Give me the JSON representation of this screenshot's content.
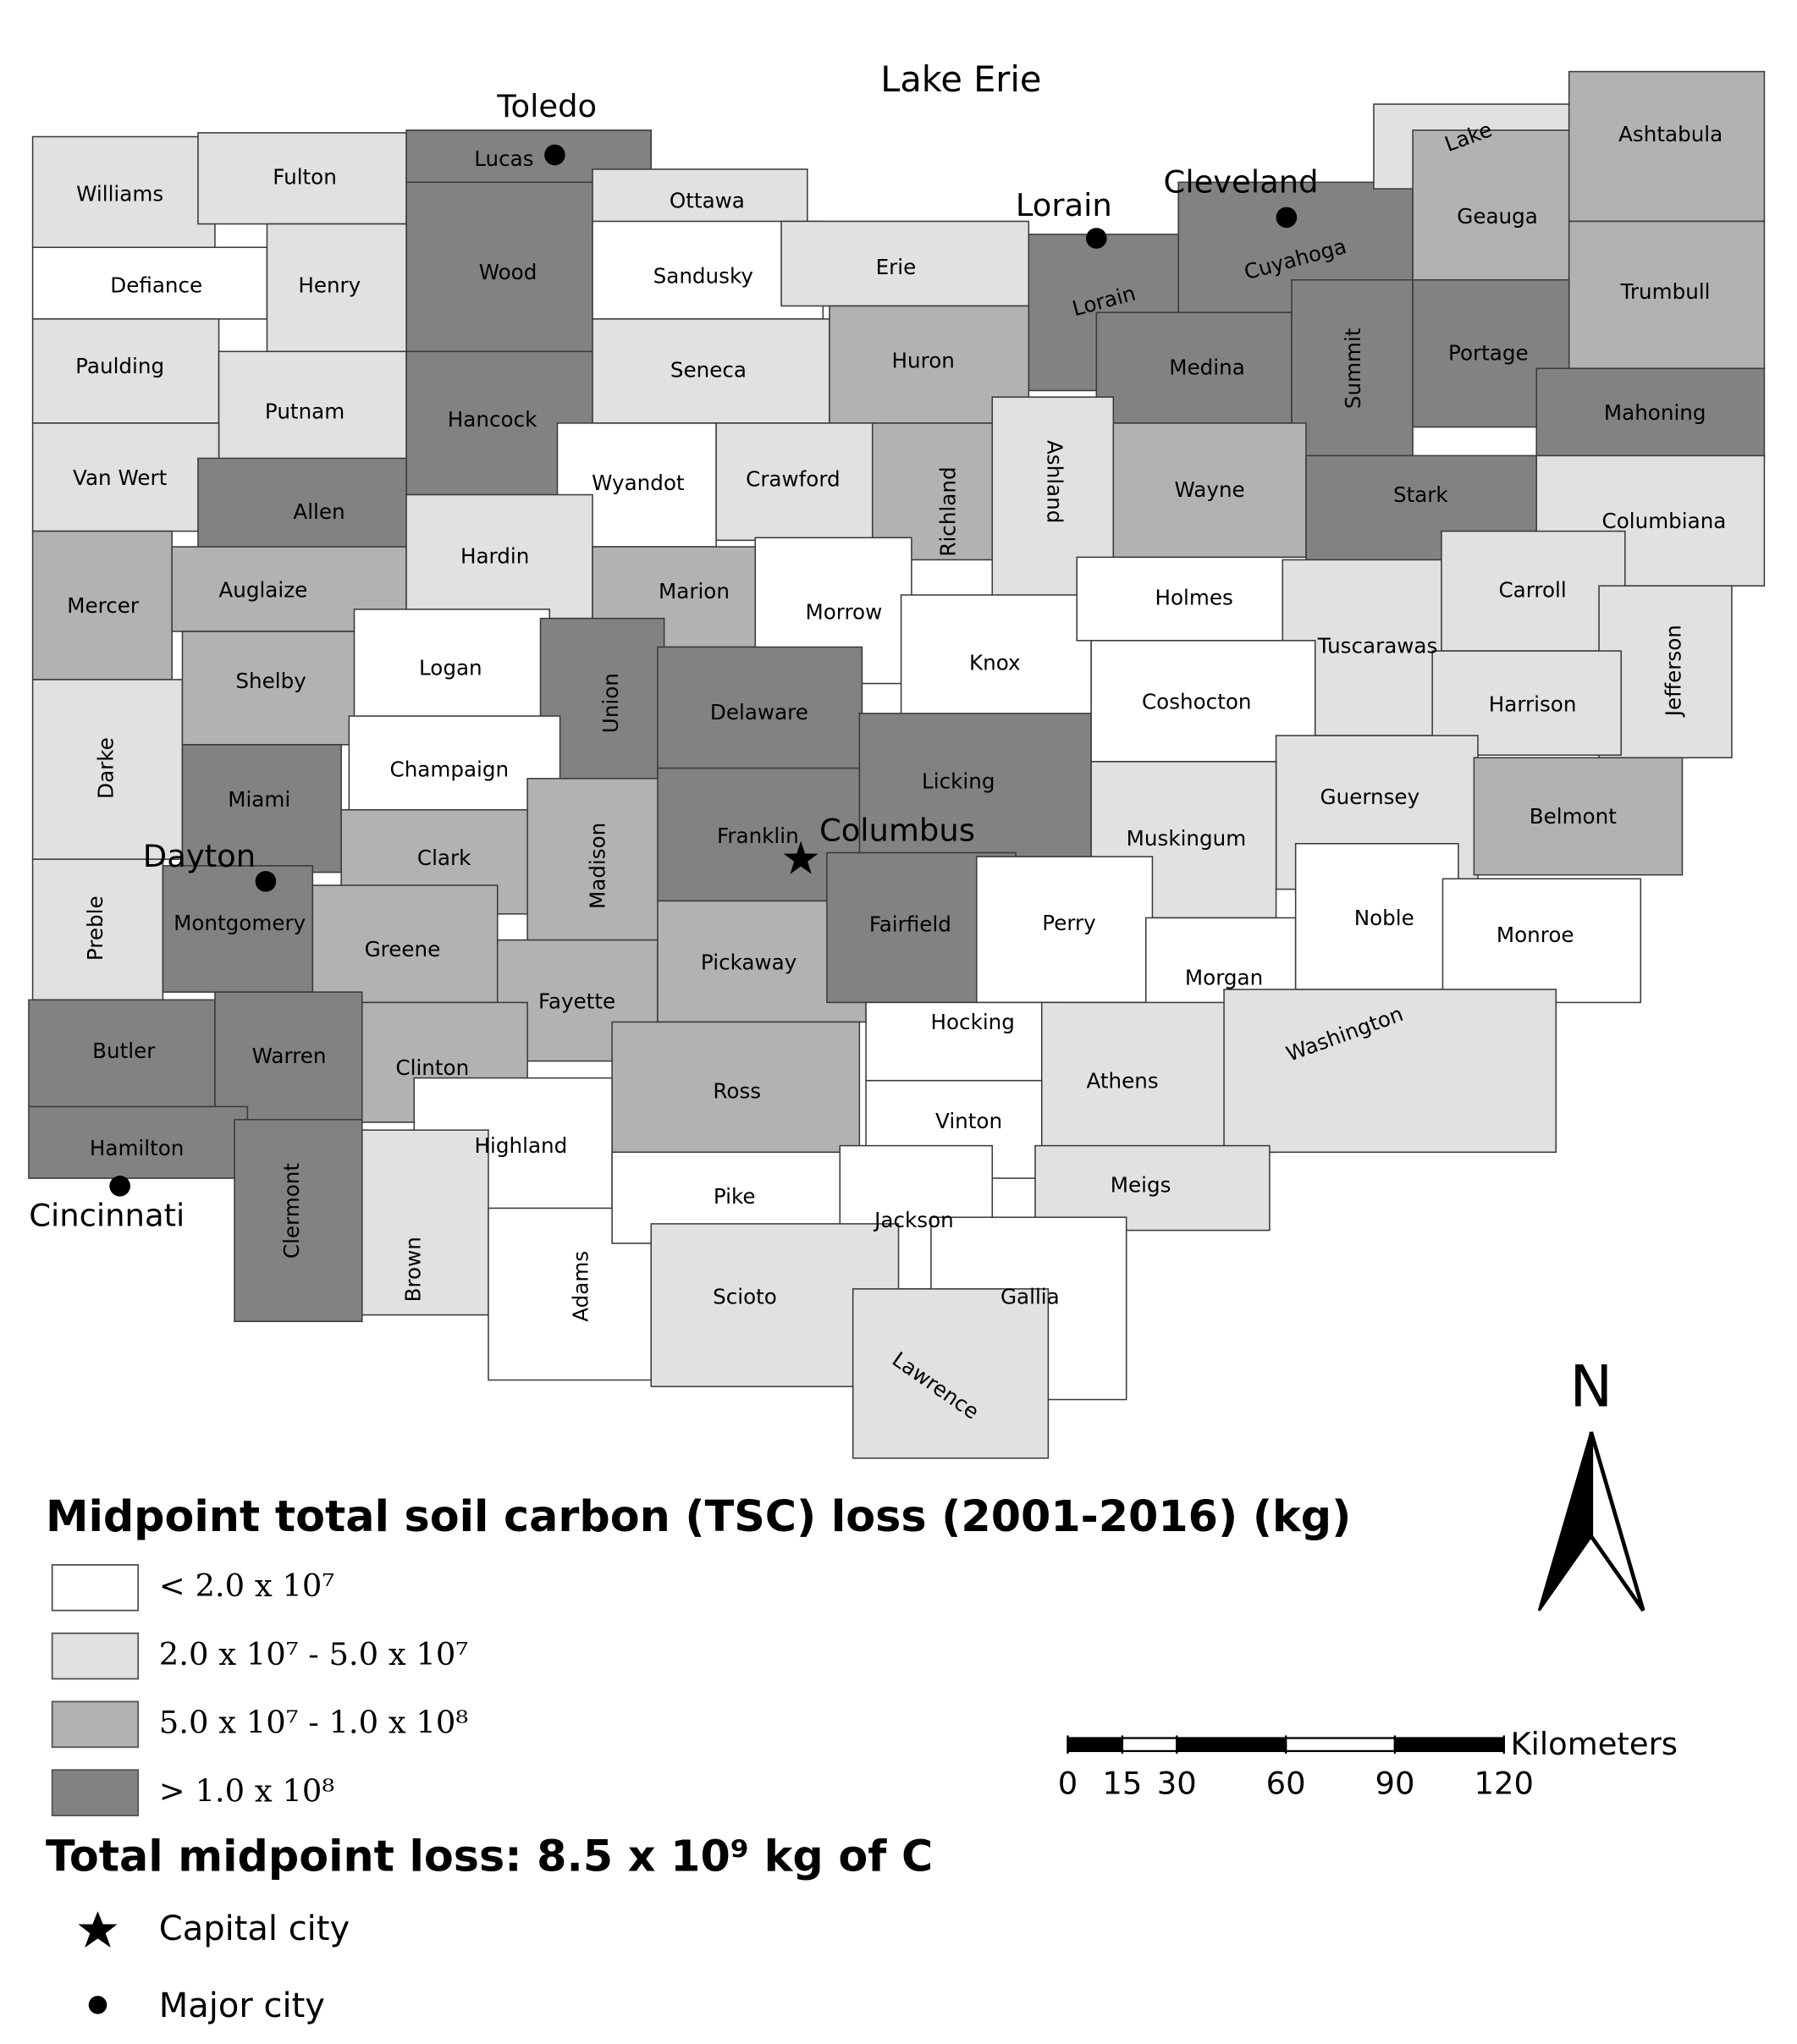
{
  "title": "Midpoint total soil carbon (TSC) loss (2001-2016) (kg)",
  "lake_label": "Lake Erie",
  "legend": {
    "items": [
      {
        "label": "< 2.0 x 10⁷",
        "color": "#ffffff"
      },
      {
        "label": "2.0 x 10⁷ - 5.0 x 10⁷",
        "color": "#e1e1e1"
      },
      {
        "label": "5.0 x 10⁷ - 1.0 x 10⁸",
        "color": "#b2b2b2"
      },
      {
        "label": "> 1.0 x 10⁸",
        "color": "#828282"
      }
    ],
    "total": "Total midpoint loss: 8.5 x 10⁹ kg of C"
  },
  "symbol_legend": [
    {
      "label": "Capital city"
    },
    {
      "label": "Major city"
    }
  ],
  "cities": [
    {
      "name": "Toledo"
    },
    {
      "name": "Lorain"
    },
    {
      "name": "Cleveland"
    },
    {
      "name": "Dayton"
    },
    {
      "name": "Cincinnati"
    },
    {
      "name": "Columbus"
    }
  ],
  "scale_bar": {
    "unit": "Kilometers",
    "ticks": [
      0,
      15,
      30,
      60,
      90,
      120
    ]
  },
  "north": "N",
  "counties": [
    {
      "name": "Williams",
      "class": 1
    },
    {
      "name": "Fulton",
      "class": 1
    },
    {
      "name": "Lucas",
      "class": 3
    },
    {
      "name": "Wood",
      "class": 3
    },
    {
      "name": "Ottawa",
      "class": 1
    },
    {
      "name": "Sandusky",
      "class": 0
    },
    {
      "name": "Erie",
      "class": 1
    },
    {
      "name": "Lorain",
      "class": 3
    },
    {
      "name": "Cuyahoga",
      "class": 3
    },
    {
      "name": "Lake",
      "class": 1
    },
    {
      "name": "Geauga",
      "class": 2
    },
    {
      "name": "Ashtabula",
      "class": 2
    },
    {
      "name": "Trumbull",
      "class": 2
    },
    {
      "name": "Defiance",
      "class": 0
    },
    {
      "name": "Henry",
      "class": 1
    },
    {
      "name": "Paulding",
      "class": 1
    },
    {
      "name": "Putnam",
      "class": 1
    },
    {
      "name": "Hancock",
      "class": 3
    },
    {
      "name": "Seneca",
      "class": 1
    },
    {
      "name": "Huron",
      "class": 2
    },
    {
      "name": "Medina",
      "class": 3
    },
    {
      "name": "Summit",
      "class": 3
    },
    {
      "name": "Portage",
      "class": 3
    },
    {
      "name": "Mahoning",
      "class": 3
    },
    {
      "name": "Van Wert",
      "class": 1
    },
    {
      "name": "Allen",
      "class": 3
    },
    {
      "name": "Wyandot",
      "class": 0
    },
    {
      "name": "Crawford",
      "class": 1
    },
    {
      "name": "Richland",
      "class": 2
    },
    {
      "name": "Ashland",
      "class": 1
    },
    {
      "name": "Wayne",
      "class": 2
    },
    {
      "name": "Stark",
      "class": 3
    },
    {
      "name": "Columbiana",
      "class": 1
    },
    {
      "name": "Mercer",
      "class": 2
    },
    {
      "name": "Auglaize",
      "class": 2
    },
    {
      "name": "Hardin",
      "class": 1
    },
    {
      "name": "Marion",
      "class": 2
    },
    {
      "name": "Morrow",
      "class": 0
    },
    {
      "name": "Knox",
      "class": 0
    },
    {
      "name": "Holmes",
      "class": 0
    },
    {
      "name": "Tuscarawas",
      "class": 1
    },
    {
      "name": "Carroll",
      "class": 1
    },
    {
      "name": "Jefferson",
      "class": 1
    },
    {
      "name": "Harrison",
      "class": 1
    },
    {
      "name": "Darke",
      "class": 1
    },
    {
      "name": "Shelby",
      "class": 2
    },
    {
      "name": "Logan",
      "class": 0
    },
    {
      "name": "Union",
      "class": 3
    },
    {
      "name": "Delaware",
      "class": 3
    },
    {
      "name": "Licking",
      "class": 3
    },
    {
      "name": "Coshocton",
      "class": 0
    },
    {
      "name": "Guernsey",
      "class": 1
    },
    {
      "name": "Belmont",
      "class": 2
    },
    {
      "name": "Champaign",
      "class": 0
    },
    {
      "name": "Miami",
      "class": 3
    },
    {
      "name": "Clark",
      "class": 2
    },
    {
      "name": "Madison",
      "class": 2
    },
    {
      "name": "Franklin",
      "class": 3
    },
    {
      "name": "Muskingum",
      "class": 1
    },
    {
      "name": "Preble",
      "class": 1
    },
    {
      "name": "Montgomery",
      "class": 3
    },
    {
      "name": "Greene",
      "class": 2
    },
    {
      "name": "Fayette",
      "class": 2
    },
    {
      "name": "Pickaway",
      "class": 2
    },
    {
      "name": "Fairfield",
      "class": 3
    },
    {
      "name": "Perry",
      "class": 0
    },
    {
      "name": "Morgan",
      "class": 0
    },
    {
      "name": "Noble",
      "class": 0
    },
    {
      "name": "Monroe",
      "class": 0
    },
    {
      "name": "Butler",
      "class": 3
    },
    {
      "name": "Warren",
      "class": 3
    },
    {
      "name": "Clinton",
      "class": 2
    },
    {
      "name": "Ross",
      "class": 2
    },
    {
      "name": "Hocking",
      "class": 0
    },
    {
      "name": "Athens",
      "class": 1
    },
    {
      "name": "Washington",
      "class": 1
    },
    {
      "name": "Hamilton",
      "class": 3
    },
    {
      "name": "Clermont",
      "class": 3
    },
    {
      "name": "Highland",
      "class": 0
    },
    {
      "name": "Vinton",
      "class": 0
    },
    {
      "name": "Meigs",
      "class": 1
    },
    {
      "name": "Brown",
      "class": 1
    },
    {
      "name": "Adams",
      "class": 0
    },
    {
      "name": "Pike",
      "class": 0
    },
    {
      "name": "Jackson",
      "class": 0
    },
    {
      "name": "Scioto",
      "class": 1
    },
    {
      "name": "Gallia",
      "class": 0
    },
    {
      "name": "Lawrence",
      "class": 1
    }
  ]
}
